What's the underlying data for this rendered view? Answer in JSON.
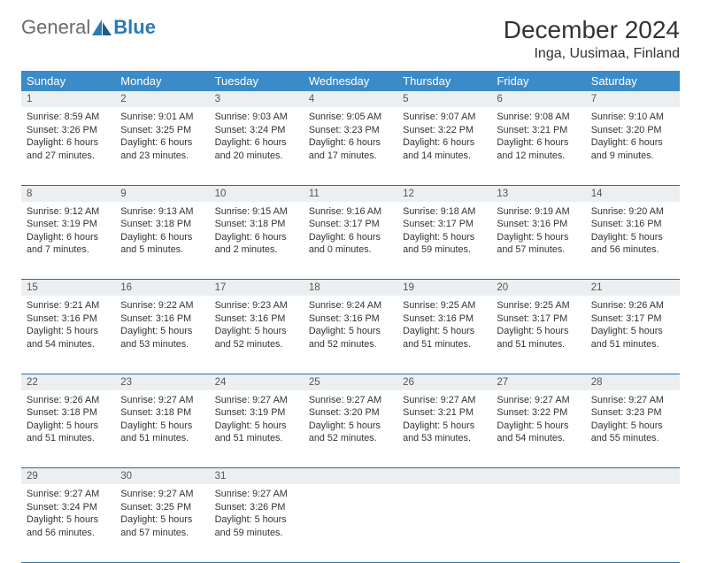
{
  "brand": {
    "part1": "General",
    "part2": "Blue"
  },
  "title": "December 2024",
  "location": "Inga, Uusimaa, Finland",
  "colors": {
    "header_bg": "#3b8bc9",
    "header_text": "#ffffff",
    "daynum_bg": "#eceff1",
    "rule": "#2a6ea5",
    "text": "#333333",
    "logo_gray": "#6b6b6b",
    "logo_blue": "#2a7ab9"
  },
  "weekdays": [
    "Sunday",
    "Monday",
    "Tuesday",
    "Wednesday",
    "Thursday",
    "Friday",
    "Saturday"
  ],
  "weeks": [
    [
      {
        "d": "1",
        "sr": "8:59 AM",
        "ss": "3:26 PM",
        "dl": "6 hours and 27 minutes."
      },
      {
        "d": "2",
        "sr": "9:01 AM",
        "ss": "3:25 PM",
        "dl": "6 hours and 23 minutes."
      },
      {
        "d": "3",
        "sr": "9:03 AM",
        "ss": "3:24 PM",
        "dl": "6 hours and 20 minutes."
      },
      {
        "d": "4",
        "sr": "9:05 AM",
        "ss": "3:23 PM",
        "dl": "6 hours and 17 minutes."
      },
      {
        "d": "5",
        "sr": "9:07 AM",
        "ss": "3:22 PM",
        "dl": "6 hours and 14 minutes."
      },
      {
        "d": "6",
        "sr": "9:08 AM",
        "ss": "3:21 PM",
        "dl": "6 hours and 12 minutes."
      },
      {
        "d": "7",
        "sr": "9:10 AM",
        "ss": "3:20 PM",
        "dl": "6 hours and 9 minutes."
      }
    ],
    [
      {
        "d": "8",
        "sr": "9:12 AM",
        "ss": "3:19 PM",
        "dl": "6 hours and 7 minutes."
      },
      {
        "d": "9",
        "sr": "9:13 AM",
        "ss": "3:18 PM",
        "dl": "6 hours and 5 minutes."
      },
      {
        "d": "10",
        "sr": "9:15 AM",
        "ss": "3:18 PM",
        "dl": "6 hours and 2 minutes."
      },
      {
        "d": "11",
        "sr": "9:16 AM",
        "ss": "3:17 PM",
        "dl": "6 hours and 0 minutes."
      },
      {
        "d": "12",
        "sr": "9:18 AM",
        "ss": "3:17 PM",
        "dl": "5 hours and 59 minutes."
      },
      {
        "d": "13",
        "sr": "9:19 AM",
        "ss": "3:16 PM",
        "dl": "5 hours and 57 minutes."
      },
      {
        "d": "14",
        "sr": "9:20 AM",
        "ss": "3:16 PM",
        "dl": "5 hours and 56 minutes."
      }
    ],
    [
      {
        "d": "15",
        "sr": "9:21 AM",
        "ss": "3:16 PM",
        "dl": "5 hours and 54 minutes."
      },
      {
        "d": "16",
        "sr": "9:22 AM",
        "ss": "3:16 PM",
        "dl": "5 hours and 53 minutes."
      },
      {
        "d": "17",
        "sr": "9:23 AM",
        "ss": "3:16 PM",
        "dl": "5 hours and 52 minutes."
      },
      {
        "d": "18",
        "sr": "9:24 AM",
        "ss": "3:16 PM",
        "dl": "5 hours and 52 minutes."
      },
      {
        "d": "19",
        "sr": "9:25 AM",
        "ss": "3:16 PM",
        "dl": "5 hours and 51 minutes."
      },
      {
        "d": "20",
        "sr": "9:25 AM",
        "ss": "3:17 PM",
        "dl": "5 hours and 51 minutes."
      },
      {
        "d": "21",
        "sr": "9:26 AM",
        "ss": "3:17 PM",
        "dl": "5 hours and 51 minutes."
      }
    ],
    [
      {
        "d": "22",
        "sr": "9:26 AM",
        "ss": "3:18 PM",
        "dl": "5 hours and 51 minutes."
      },
      {
        "d": "23",
        "sr": "9:27 AM",
        "ss": "3:18 PM",
        "dl": "5 hours and 51 minutes."
      },
      {
        "d": "24",
        "sr": "9:27 AM",
        "ss": "3:19 PM",
        "dl": "5 hours and 51 minutes."
      },
      {
        "d": "25",
        "sr": "9:27 AM",
        "ss": "3:20 PM",
        "dl": "5 hours and 52 minutes."
      },
      {
        "d": "26",
        "sr": "9:27 AM",
        "ss": "3:21 PM",
        "dl": "5 hours and 53 minutes."
      },
      {
        "d": "27",
        "sr": "9:27 AM",
        "ss": "3:22 PM",
        "dl": "5 hours and 54 minutes."
      },
      {
        "d": "28",
        "sr": "9:27 AM",
        "ss": "3:23 PM",
        "dl": "5 hours and 55 minutes."
      }
    ],
    [
      {
        "d": "29",
        "sr": "9:27 AM",
        "ss": "3:24 PM",
        "dl": "5 hours and 56 minutes."
      },
      {
        "d": "30",
        "sr": "9:27 AM",
        "ss": "3:25 PM",
        "dl": "5 hours and 57 minutes."
      },
      {
        "d": "31",
        "sr": "9:27 AM",
        "ss": "3:26 PM",
        "dl": "5 hours and 59 minutes."
      },
      null,
      null,
      null,
      null
    ]
  ],
  "labels": {
    "sunrise": "Sunrise:",
    "sunset": "Sunset:",
    "daylight": "Daylight:"
  }
}
